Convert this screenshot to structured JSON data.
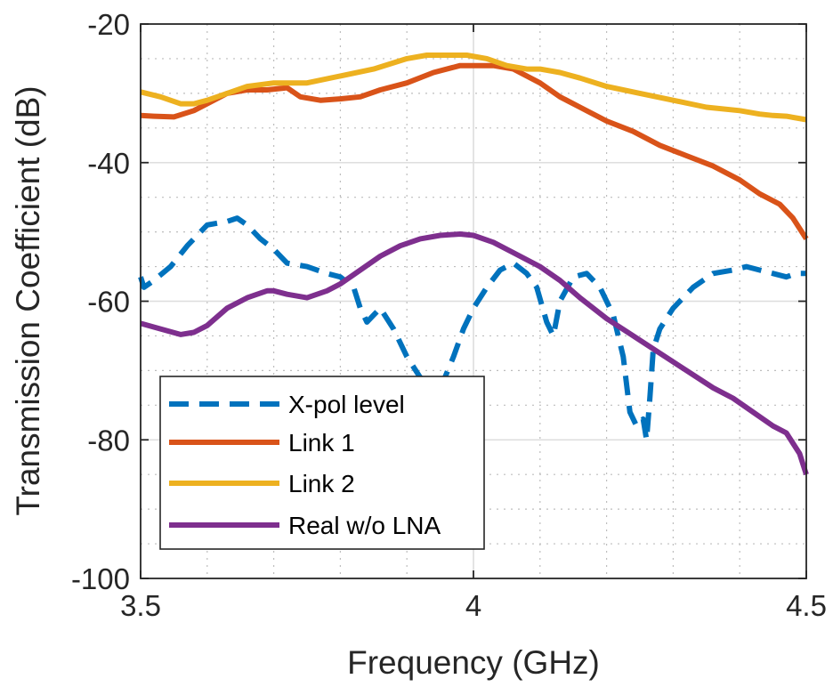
{
  "chart_data": {
    "type": "line",
    "title": "",
    "xlabel": "Frequency (GHz)",
    "ylabel": "Transmission Coefficient (dB)",
    "xlim": [
      3.5,
      4.5
    ],
    "ylim": [
      -100,
      -20
    ],
    "xticks": [
      3.5,
      4.0,
      4.5
    ],
    "xtick_labels": [
      "3.5",
      "4",
      "4.5"
    ],
    "yticks": [
      -100,
      -80,
      -60,
      -40,
      -20
    ],
    "ytick_labels": [
      "-100",
      "-80",
      "-60",
      "-40",
      "-20"
    ],
    "grid": true,
    "minor_grid": true,
    "legend_position": "bottom-left",
    "series": [
      {
        "name": "X-pol level",
        "color": "#0072BD",
        "dash": "dashed",
        "x": [
          3.5,
          3.505,
          3.52,
          3.545,
          3.57,
          3.6,
          3.63,
          3.645,
          3.66,
          3.68,
          3.7,
          3.72,
          3.75,
          3.78,
          3.8,
          3.82,
          3.83,
          3.84,
          3.85,
          3.86,
          3.88,
          3.9,
          3.92,
          3.94,
          3.955,
          3.97,
          3.985,
          4.0,
          4.02,
          4.04,
          4.06,
          4.08,
          4.095,
          4.11,
          4.12,
          4.13,
          4.15,
          4.17,
          4.19,
          4.21,
          4.225,
          4.235,
          4.245,
          4.255,
          4.26,
          4.265,
          4.27,
          4.28,
          4.3,
          4.33,
          4.36,
          4.39,
          4.41,
          4.43,
          4.45,
          4.47,
          4.485,
          4.5
        ],
        "y": [
          -56.5,
          -58,
          -57,
          -55,
          -52,
          -49,
          -48.5,
          -48,
          -49,
          -51,
          -52.5,
          -54.5,
          -55,
          -56,
          -56.5,
          -58,
          -61,
          -63,
          -62,
          -61,
          -64,
          -68,
          -71,
          -72,
          -71.5,
          -68,
          -64,
          -61,
          -58,
          -55.5,
          -54.5,
          -56,
          -58,
          -63,
          -65,
          -60,
          -56.5,
          -56,
          -58,
          -62,
          -68,
          -76,
          -78,
          -77,
          -80,
          -74,
          -67,
          -64,
          -61,
          -58,
          -56,
          -55.5,
          -55,
          -55.5,
          -56,
          -56.5,
          -56,
          -56
        ]
      },
      {
        "name": "Link 1",
        "color": "#D95319",
        "dash": "solid",
        "x": [
          3.5,
          3.52,
          3.55,
          3.58,
          3.6,
          3.63,
          3.66,
          3.69,
          3.72,
          3.74,
          3.77,
          3.8,
          3.83,
          3.86,
          3.9,
          3.94,
          3.98,
          4.0,
          4.03,
          4.06,
          4.1,
          4.13,
          4.16,
          4.2,
          4.24,
          4.28,
          4.32,
          4.36,
          4.4,
          4.43,
          4.46,
          4.48,
          4.5
        ],
        "y": [
          -33.2,
          -33.3,
          -33.4,
          -32.5,
          -31.5,
          -30,
          -29.5,
          -29.5,
          -29.2,
          -30.5,
          -31,
          -30.8,
          -30.5,
          -29.5,
          -28.5,
          -27,
          -26,
          -26,
          -26,
          -26.5,
          -28.5,
          -30.5,
          -32,
          -34,
          -35.5,
          -37.5,
          -39,
          -40.5,
          -42.5,
          -44.5,
          -46,
          -48,
          -51
        ]
      },
      {
        "name": "Link 2",
        "color": "#EDB120",
        "dash": "solid",
        "x": [
          3.5,
          3.53,
          3.56,
          3.58,
          3.6,
          3.63,
          3.66,
          3.7,
          3.75,
          3.8,
          3.85,
          3.9,
          3.93,
          3.96,
          3.99,
          4.02,
          4.05,
          4.08,
          4.1,
          4.13,
          4.16,
          4.2,
          4.25,
          4.3,
          4.35,
          4.4,
          4.43,
          4.45,
          4.47,
          4.5
        ],
        "y": [
          -29.8,
          -30.5,
          -31.5,
          -31.5,
          -31,
          -30,
          -29,
          -28.5,
          -28.5,
          -27.5,
          -26.5,
          -25,
          -24.5,
          -24.5,
          -24.5,
          -25,
          -26,
          -26.5,
          -26.5,
          -27,
          -27.8,
          -29,
          -30,
          -31,
          -32,
          -32.5,
          -33,
          -33.2,
          -33.3,
          -33.8
        ]
      },
      {
        "name": "Real w/o LNA",
        "color": "#7E2F8E",
        "dash": "solid",
        "x": [
          3.5,
          3.53,
          3.56,
          3.58,
          3.6,
          3.63,
          3.66,
          3.69,
          3.7,
          3.72,
          3.75,
          3.78,
          3.8,
          3.83,
          3.86,
          3.89,
          3.92,
          3.95,
          3.98,
          4.0,
          4.03,
          4.06,
          4.1,
          4.13,
          4.16,
          4.2,
          4.24,
          4.28,
          4.32,
          4.36,
          4.39,
          4.42,
          4.45,
          4.47,
          4.49,
          4.5
        ],
        "y": [
          -63.2,
          -64,
          -64.8,
          -64.5,
          -63.5,
          -61,
          -59.5,
          -58.5,
          -58.5,
          -59,
          -59.5,
          -58.5,
          -57.5,
          -55.5,
          -53.5,
          -52,
          -51,
          -50.5,
          -50.3,
          -50.5,
          -51.5,
          -53,
          -55,
          -57,
          -59.5,
          -62.5,
          -65,
          -67.5,
          -70,
          -72.5,
          -74,
          -76,
          -78,
          -79,
          -82,
          -85
        ]
      }
    ]
  }
}
